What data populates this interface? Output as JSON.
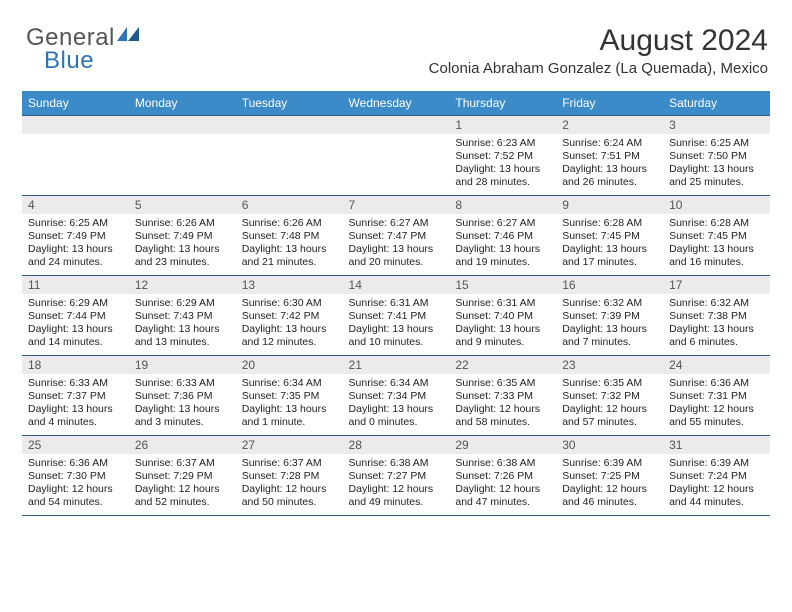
{
  "logo": {
    "line1": "General",
    "line2": "Blue"
  },
  "title": "August 2024",
  "location": "Colonia Abraham Gonzalez (La Quemada), Mexico",
  "colors": {
    "header_bg": "#3b8bc9",
    "header_text": "#ffffff",
    "daynum_bg": "#eceaea",
    "border": "#2f5d8a",
    "body_text": "#222222",
    "title_text": "#333333",
    "logo_gray": "#555555",
    "logo_blue": "#2f73b5",
    "page_bg": "#ffffff"
  },
  "typography": {
    "month_fontsize": 30,
    "location_fontsize": 15,
    "dayheader_fontsize": 12,
    "body_fontsize": 10.5,
    "font_family": "Arial"
  },
  "day_headers": [
    "Sunday",
    "Monday",
    "Tuesday",
    "Wednesday",
    "Thursday",
    "Friday",
    "Saturday"
  ],
  "weeks": [
    [
      {
        "num": "",
        "sunrise": "",
        "sunset": "",
        "daylight": ""
      },
      {
        "num": "",
        "sunrise": "",
        "sunset": "",
        "daylight": ""
      },
      {
        "num": "",
        "sunrise": "",
        "sunset": "",
        "daylight": ""
      },
      {
        "num": "",
        "sunrise": "",
        "sunset": "",
        "daylight": ""
      },
      {
        "num": "1",
        "sunrise": "Sunrise: 6:23 AM",
        "sunset": "Sunset: 7:52 PM",
        "daylight": "Daylight: 13 hours and 28 minutes."
      },
      {
        "num": "2",
        "sunrise": "Sunrise: 6:24 AM",
        "sunset": "Sunset: 7:51 PM",
        "daylight": "Daylight: 13 hours and 26 minutes."
      },
      {
        "num": "3",
        "sunrise": "Sunrise: 6:25 AM",
        "sunset": "Sunset: 7:50 PM",
        "daylight": "Daylight: 13 hours and 25 minutes."
      }
    ],
    [
      {
        "num": "4",
        "sunrise": "Sunrise: 6:25 AM",
        "sunset": "Sunset: 7:49 PM",
        "daylight": "Daylight: 13 hours and 24 minutes."
      },
      {
        "num": "5",
        "sunrise": "Sunrise: 6:26 AM",
        "sunset": "Sunset: 7:49 PM",
        "daylight": "Daylight: 13 hours and 23 minutes."
      },
      {
        "num": "6",
        "sunrise": "Sunrise: 6:26 AM",
        "sunset": "Sunset: 7:48 PM",
        "daylight": "Daylight: 13 hours and 21 minutes."
      },
      {
        "num": "7",
        "sunrise": "Sunrise: 6:27 AM",
        "sunset": "Sunset: 7:47 PM",
        "daylight": "Daylight: 13 hours and 20 minutes."
      },
      {
        "num": "8",
        "sunrise": "Sunrise: 6:27 AM",
        "sunset": "Sunset: 7:46 PM",
        "daylight": "Daylight: 13 hours and 19 minutes."
      },
      {
        "num": "9",
        "sunrise": "Sunrise: 6:28 AM",
        "sunset": "Sunset: 7:45 PM",
        "daylight": "Daylight: 13 hours and 17 minutes."
      },
      {
        "num": "10",
        "sunrise": "Sunrise: 6:28 AM",
        "sunset": "Sunset: 7:45 PM",
        "daylight": "Daylight: 13 hours and 16 minutes."
      }
    ],
    [
      {
        "num": "11",
        "sunrise": "Sunrise: 6:29 AM",
        "sunset": "Sunset: 7:44 PM",
        "daylight": "Daylight: 13 hours and 14 minutes."
      },
      {
        "num": "12",
        "sunrise": "Sunrise: 6:29 AM",
        "sunset": "Sunset: 7:43 PM",
        "daylight": "Daylight: 13 hours and 13 minutes."
      },
      {
        "num": "13",
        "sunrise": "Sunrise: 6:30 AM",
        "sunset": "Sunset: 7:42 PM",
        "daylight": "Daylight: 13 hours and 12 minutes."
      },
      {
        "num": "14",
        "sunrise": "Sunrise: 6:31 AM",
        "sunset": "Sunset: 7:41 PM",
        "daylight": "Daylight: 13 hours and 10 minutes."
      },
      {
        "num": "15",
        "sunrise": "Sunrise: 6:31 AM",
        "sunset": "Sunset: 7:40 PM",
        "daylight": "Daylight: 13 hours and 9 minutes."
      },
      {
        "num": "16",
        "sunrise": "Sunrise: 6:32 AM",
        "sunset": "Sunset: 7:39 PM",
        "daylight": "Daylight: 13 hours and 7 minutes."
      },
      {
        "num": "17",
        "sunrise": "Sunrise: 6:32 AM",
        "sunset": "Sunset: 7:38 PM",
        "daylight": "Daylight: 13 hours and 6 minutes."
      }
    ],
    [
      {
        "num": "18",
        "sunrise": "Sunrise: 6:33 AM",
        "sunset": "Sunset: 7:37 PM",
        "daylight": "Daylight: 13 hours and 4 minutes."
      },
      {
        "num": "19",
        "sunrise": "Sunrise: 6:33 AM",
        "sunset": "Sunset: 7:36 PM",
        "daylight": "Daylight: 13 hours and 3 minutes."
      },
      {
        "num": "20",
        "sunrise": "Sunrise: 6:34 AM",
        "sunset": "Sunset: 7:35 PM",
        "daylight": "Daylight: 13 hours and 1 minute."
      },
      {
        "num": "21",
        "sunrise": "Sunrise: 6:34 AM",
        "sunset": "Sunset: 7:34 PM",
        "daylight": "Daylight: 13 hours and 0 minutes."
      },
      {
        "num": "22",
        "sunrise": "Sunrise: 6:35 AM",
        "sunset": "Sunset: 7:33 PM",
        "daylight": "Daylight: 12 hours and 58 minutes."
      },
      {
        "num": "23",
        "sunrise": "Sunrise: 6:35 AM",
        "sunset": "Sunset: 7:32 PM",
        "daylight": "Daylight: 12 hours and 57 minutes."
      },
      {
        "num": "24",
        "sunrise": "Sunrise: 6:36 AM",
        "sunset": "Sunset: 7:31 PM",
        "daylight": "Daylight: 12 hours and 55 minutes."
      }
    ],
    [
      {
        "num": "25",
        "sunrise": "Sunrise: 6:36 AM",
        "sunset": "Sunset: 7:30 PM",
        "daylight": "Daylight: 12 hours and 54 minutes."
      },
      {
        "num": "26",
        "sunrise": "Sunrise: 6:37 AM",
        "sunset": "Sunset: 7:29 PM",
        "daylight": "Daylight: 12 hours and 52 minutes."
      },
      {
        "num": "27",
        "sunrise": "Sunrise: 6:37 AM",
        "sunset": "Sunset: 7:28 PM",
        "daylight": "Daylight: 12 hours and 50 minutes."
      },
      {
        "num": "28",
        "sunrise": "Sunrise: 6:38 AM",
        "sunset": "Sunset: 7:27 PM",
        "daylight": "Daylight: 12 hours and 49 minutes."
      },
      {
        "num": "29",
        "sunrise": "Sunrise: 6:38 AM",
        "sunset": "Sunset: 7:26 PM",
        "daylight": "Daylight: 12 hours and 47 minutes."
      },
      {
        "num": "30",
        "sunrise": "Sunrise: 6:39 AM",
        "sunset": "Sunset: 7:25 PM",
        "daylight": "Daylight: 12 hours and 46 minutes."
      },
      {
        "num": "31",
        "sunrise": "Sunrise: 6:39 AM",
        "sunset": "Sunset: 7:24 PM",
        "daylight": "Daylight: 12 hours and 44 minutes."
      }
    ]
  ]
}
